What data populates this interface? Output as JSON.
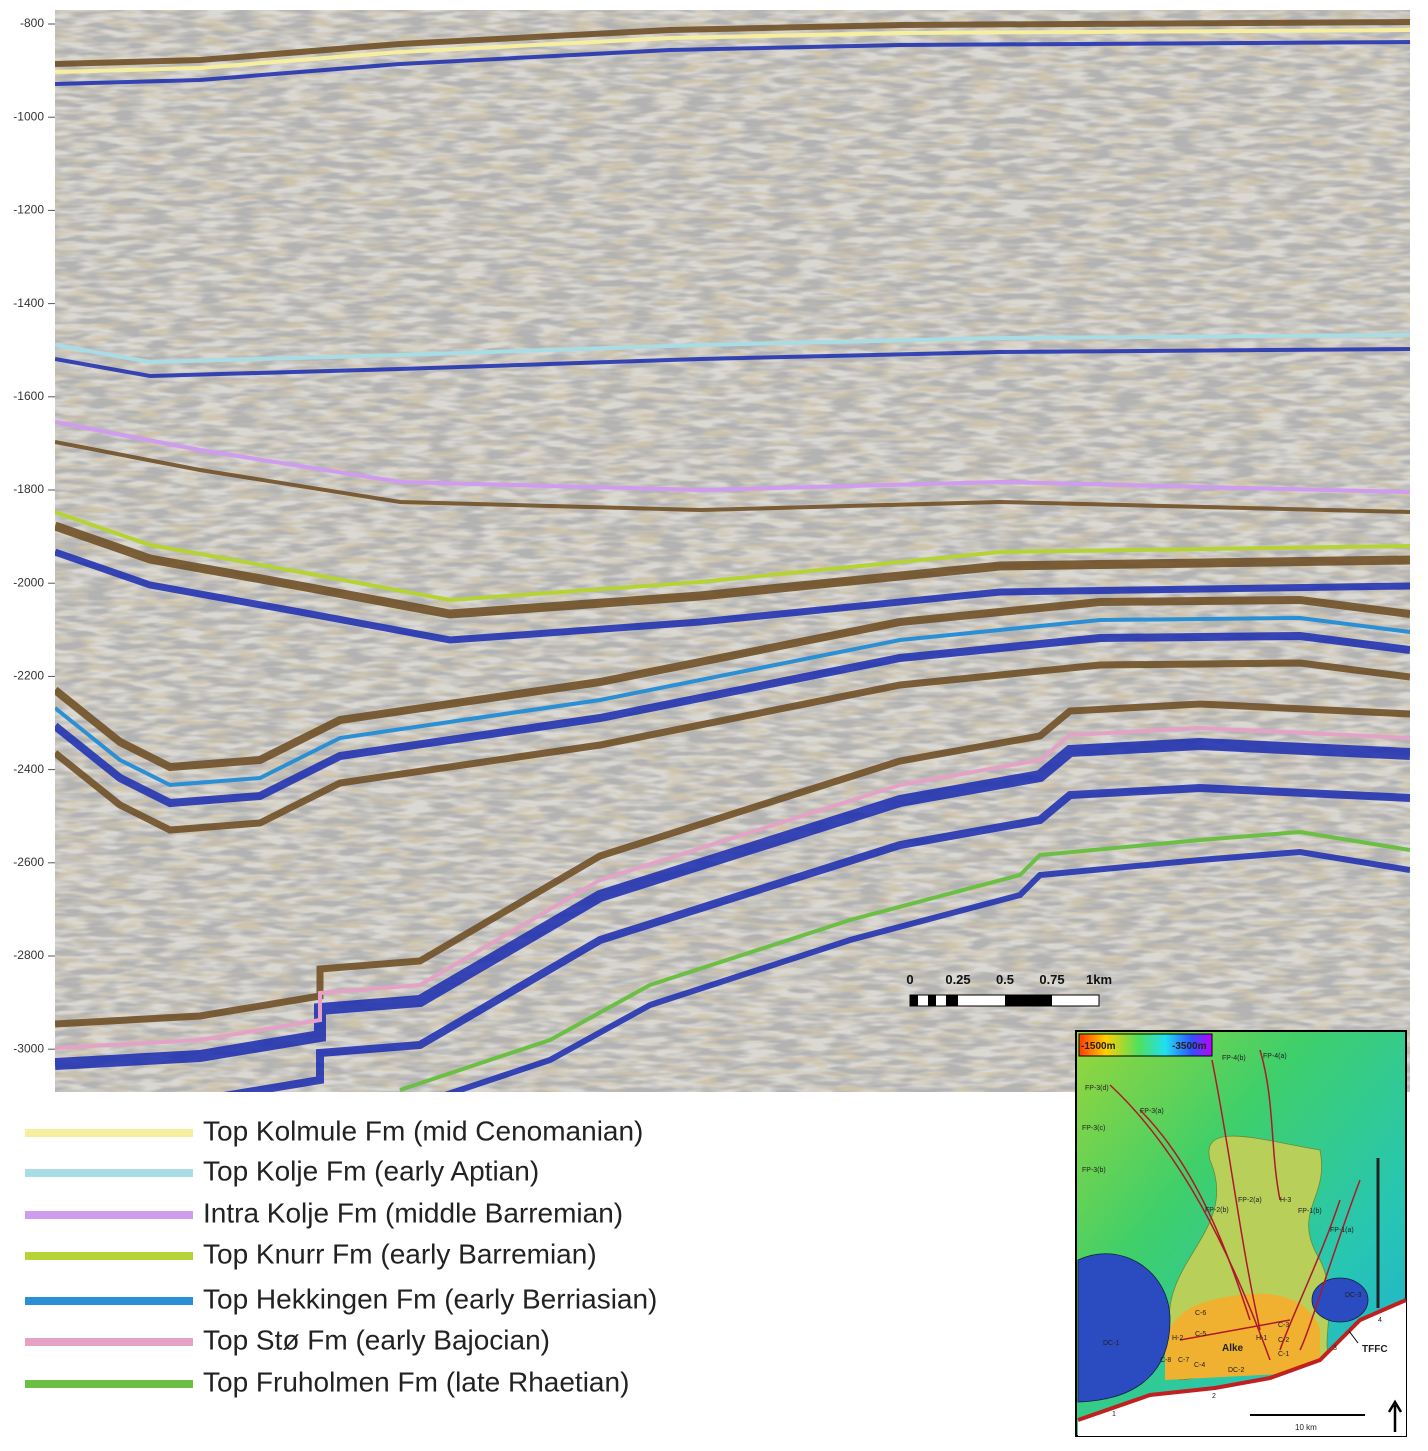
{
  "depth_axis": {
    "ticks": [
      "-800",
      "-1000",
      "-1200",
      "-1400",
      "-1600",
      "-1800",
      "-2000",
      "-2200",
      "-2400",
      "-2600",
      "-2800",
      "-3000"
    ]
  },
  "legend": [
    {
      "label": "Top Kolmule Fm (mid Cenomanian)",
      "color": "#f7efa0"
    },
    {
      "label": "Top Kolje Fm (early Aptian)",
      "color": "#a9dde6"
    },
    {
      "label": "Intra Kolje Fm (middle Barremian)",
      "color": "#cf9cf0"
    },
    {
      "label": "Top Knurr Fm (early Barremian)",
      "color": "#b5d335"
    },
    {
      "label": "Top Hekkingen Fm (early Berriasian)",
      "color": "#2b8fd6"
    },
    {
      "label": "Top Stø Fm (early Bajocian)",
      "color": "#e4a3c6"
    },
    {
      "label": "Top Fruholmen Fm (late Rhaetian)",
      "color": "#6bbf45"
    }
  ],
  "scale_bar": {
    "labels": [
      "0",
      "0.25",
      "0.5",
      "0.75",
      "1km"
    ]
  },
  "inset_map": {
    "colorbar": [
      "-1500m",
      "-3500m"
    ],
    "labels": [
      "FP-4(b)",
      "FP-4(a)",
      "FP-3(d)",
      "FP-3(a)",
      "FP-3(c)",
      "FP-3(b)",
      "FP-2(a)",
      "H-3",
      "FP-2(b)",
      "FP-1(b)",
      "FP-1(a)",
      "DC-3",
      "DC-1",
      "C-6",
      "H-2",
      "C-5",
      "C-3",
      "H-1",
      "C-2",
      "C-1",
      "Alke",
      "C-8",
      "C-7",
      "C-4",
      "DC-2",
      "TFFC",
      "1",
      "2",
      "3",
      "4"
    ],
    "scale": "10 km"
  }
}
